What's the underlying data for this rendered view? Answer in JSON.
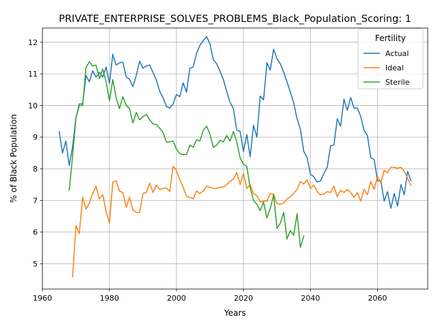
{
  "chart_data": {
    "type": "line",
    "title": "PRIVATE_ENTERPRISE_SOLVES_PROBLEMS_Black_Population_Scoring: 1",
    "xlabel": "Years",
    "ylabel": "% of Black Population",
    "xlim": [
      1960,
      2075
    ],
    "ylim": [
      4.2,
      12.45
    ],
    "xticks": [
      1960,
      1980,
      2000,
      2020,
      2040,
      2060
    ],
    "yticks": [
      5,
      6,
      7,
      8,
      9,
      10,
      11,
      12
    ],
    "grid": true,
    "legend": {
      "title": "Fertility",
      "placement": "top-right"
    },
    "series": [
      {
        "name": "Actual",
        "color": "#1f77b4",
        "points": [
          [
            1965,
            9.18
          ],
          [
            1966,
            8.5
          ],
          [
            1967,
            8.88
          ],
          [
            1968,
            8.1
          ],
          [
            1969,
            8.7
          ],
          [
            1970,
            9.6
          ],
          [
            1971,
            10.05
          ],
          [
            1972,
            10.05
          ],
          [
            1973,
            10.95
          ],
          [
            1974,
            10.75
          ],
          [
            1975,
            11.1
          ],
          [
            1976,
            10.9
          ],
          [
            1977,
            11.05
          ],
          [
            1978,
            10.9
          ],
          [
            1979,
            11.22
          ],
          [
            1980,
            10.7
          ],
          [
            1981,
            11.62
          ],
          [
            1982,
            11.28
          ],
          [
            1983,
            11.35
          ],
          [
            1984,
            11.37
          ],
          [
            1985,
            10.9
          ],
          [
            1986,
            10.83
          ],
          [
            1987,
            10.6
          ],
          [
            1988,
            10.95
          ],
          [
            1989,
            11.4
          ],
          [
            1990,
            11.18
          ],
          [
            1991,
            11.25
          ],
          [
            1992,
            11.28
          ],
          [
            1993,
            11.05
          ],
          [
            1994,
            10.8
          ],
          [
            1995,
            10.45
          ],
          [
            1996,
            10.25
          ],
          [
            1997,
            9.97
          ],
          [
            1998,
            9.92
          ],
          [
            1999,
            10.05
          ],
          [
            2000,
            10.35
          ],
          [
            2001,
            10.28
          ],
          [
            2002,
            10.72
          ],
          [
            2003,
            10.42
          ],
          [
            2004,
            11.18
          ],
          [
            2005,
            11.22
          ],
          [
            2006,
            11.65
          ],
          [
            2007,
            11.9
          ],
          [
            2008,
            12.05
          ],
          [
            2009,
            12.18
          ],
          [
            2010,
            11.95
          ],
          [
            2011,
            11.45
          ],
          [
            2012,
            11.32
          ],
          [
            2013,
            11.08
          ],
          [
            2014,
            10.82
          ],
          [
            2015,
            10.45
          ],
          [
            2016,
            10.1
          ],
          [
            2017,
            9.9
          ],
          [
            2018,
            9.22
          ],
          [
            2019,
            9.18
          ],
          [
            2020,
            8.55
          ],
          [
            2021,
            9.08
          ],
          [
            2022,
            8.38
          ],
          [
            2023,
            9.38
          ],
          [
            2024,
            9.0
          ],
          [
            2025,
            10.3
          ],
          [
            2026,
            10.18
          ],
          [
            2027,
            11.35
          ],
          [
            2028,
            11.12
          ],
          [
            2029,
            11.78
          ],
          [
            2030,
            11.48
          ],
          [
            2031,
            11.32
          ],
          [
            2032,
            11.05
          ],
          [
            2033,
            10.75
          ],
          [
            2034,
            10.42
          ],
          [
            2035,
            10.08
          ],
          [
            2036,
            9.58
          ],
          [
            2037,
            9.25
          ],
          [
            2038,
            8.55
          ],
          [
            2039,
            8.35
          ],
          [
            2040,
            7.83
          ],
          [
            2041,
            7.75
          ],
          [
            2042,
            7.58
          ],
          [
            2043,
            7.62
          ],
          [
            2044,
            7.85
          ],
          [
            2045,
            8.05
          ],
          [
            2046,
            8.73
          ],
          [
            2047,
            8.75
          ],
          [
            2048,
            9.58
          ],
          [
            2049,
            9.35
          ],
          [
            2050,
            10.2
          ],
          [
            2051,
            9.85
          ],
          [
            2052,
            10.25
          ],
          [
            2053,
            9.92
          ],
          [
            2054,
            9.92
          ],
          [
            2055,
            9.65
          ],
          [
            2056,
            9.22
          ],
          [
            2057,
            9.05
          ],
          [
            2058,
            8.35
          ],
          [
            2059,
            8.3
          ],
          [
            2060,
            7.62
          ],
          [
            2061,
            7.62
          ],
          [
            2062,
            6.98
          ],
          [
            2063,
            7.28
          ],
          [
            2064,
            6.75
          ],
          [
            2065,
            7.22
          ],
          [
            2066,
            6.82
          ],
          [
            2067,
            7.5
          ],
          [
            2068,
            7.18
          ],
          [
            2069,
            7.92
          ],
          [
            2070,
            7.62
          ]
        ]
      },
      {
        "name": "Ideal",
        "color": "#ff7f0e",
        "points": [
          [
            1969,
            4.58
          ],
          [
            1970,
            6.2
          ],
          [
            1971,
            5.95
          ],
          [
            1972,
            7.1
          ],
          [
            1973,
            6.72
          ],
          [
            1974,
            6.92
          ],
          [
            1975,
            7.22
          ],
          [
            1976,
            7.45
          ],
          [
            1977,
            7.05
          ],
          [
            1978,
            7.18
          ],
          [
            1979,
            6.65
          ],
          [
            1980,
            6.28
          ],
          [
            1981,
            7.58
          ],
          [
            1982,
            7.62
          ],
          [
            1983,
            7.3
          ],
          [
            1984,
            7.25
          ],
          [
            1985,
            6.78
          ],
          [
            1986,
            7.1
          ],
          [
            1987,
            6.7
          ],
          [
            1988,
            6.62
          ],
          [
            1989,
            6.62
          ],
          [
            1990,
            7.22
          ],
          [
            1991,
            7.25
          ],
          [
            1992,
            7.55
          ],
          [
            1993,
            7.25
          ],
          [
            1994,
            7.48
          ],
          [
            1995,
            7.35
          ],
          [
            1996,
            7.38
          ],
          [
            1997,
            7.4
          ],
          [
            1998,
            7.28
          ],
          [
            1999,
            8.08
          ],
          [
            2000,
            7.95
          ],
          [
            2001,
            7.65
          ],
          [
            2002,
            7.42
          ],
          [
            2003,
            7.12
          ],
          [
            2004,
            7.1
          ],
          [
            2005,
            7.05
          ],
          [
            2006,
            7.3
          ],
          [
            2007,
            7.22
          ],
          [
            2008,
            7.3
          ],
          [
            2009,
            7.45
          ],
          [
            2010,
            7.42
          ],
          [
            2011,
            7.38
          ],
          [
            2012,
            7.38
          ],
          [
            2013,
            7.42
          ],
          [
            2014,
            7.42
          ],
          [
            2015,
            7.5
          ],
          [
            2016,
            7.6
          ],
          [
            2017,
            7.68
          ],
          [
            2018,
            7.88
          ],
          [
            2019,
            7.5
          ],
          [
            2020,
            7.85
          ],
          [
            2021,
            7.38
          ],
          [
            2022,
            7.5
          ],
          [
            2023,
            7.22
          ],
          [
            2024,
            7.15
          ],
          [
            2025,
            6.95
          ],
          [
            2026,
            6.98
          ],
          [
            2027,
            6.98
          ],
          [
            2028,
            7.22
          ],
          [
            2029,
            7.2
          ],
          [
            2030,
            6.9
          ],
          [
            2031,
            6.88
          ],
          [
            2032,
            6.92
          ],
          [
            2033,
            7.05
          ],
          [
            2034,
            7.12
          ],
          [
            2035,
            7.22
          ],
          [
            2036,
            7.35
          ],
          [
            2037,
            7.6
          ],
          [
            2038,
            7.52
          ],
          [
            2039,
            7.65
          ],
          [
            2040,
            7.38
          ],
          [
            2041,
            7.48
          ],
          [
            2042,
            7.28
          ],
          [
            2043,
            7.18
          ],
          [
            2044,
            7.2
          ],
          [
            2045,
            7.28
          ],
          [
            2046,
            7.25
          ],
          [
            2047,
            7.45
          ],
          [
            2048,
            7.12
          ],
          [
            2049,
            7.32
          ],
          [
            2050,
            7.25
          ],
          [
            2051,
            7.35
          ],
          [
            2052,
            7.25
          ],
          [
            2053,
            7.1
          ],
          [
            2054,
            7.25
          ],
          [
            2055,
            6.98
          ],
          [
            2056,
            7.35
          ],
          [
            2057,
            7.18
          ],
          [
            2058,
            7.6
          ],
          [
            2059,
            7.35
          ],
          [
            2060,
            7.75
          ],
          [
            2061,
            7.55
          ],
          [
            2062,
            7.95
          ],
          [
            2063,
            7.88
          ],
          [
            2064,
            8.05
          ],
          [
            2065,
            8.05
          ],
          [
            2066,
            8.02
          ],
          [
            2067,
            8.05
          ],
          [
            2068,
            7.92
          ],
          [
            2069,
            7.7
          ],
          [
            2070,
            7.48
          ]
        ]
      },
      {
        "name": "Sterile",
        "color": "#2ca02c",
        "points": [
          [
            1968,
            7.32
          ],
          [
            1969,
            8.4
          ],
          [
            1970,
            9.6
          ],
          [
            1971,
            10.0
          ],
          [
            1972,
            10.0
          ],
          [
            1973,
            11.2
          ],
          [
            1974,
            11.38
          ],
          [
            1975,
            11.25
          ],
          [
            1976,
            11.28
          ],
          [
            1977,
            10.85
          ],
          [
            1978,
            11.15
          ],
          [
            1979,
            10.75
          ],
          [
            1980,
            10.15
          ],
          [
            1981,
            10.82
          ],
          [
            1982,
            10.25
          ],
          [
            1983,
            9.9
          ],
          [
            1984,
            10.28
          ],
          [
            1985,
            10.0
          ],
          [
            1986,
            9.9
          ],
          [
            1987,
            9.45
          ],
          [
            1988,
            9.78
          ],
          [
            1989,
            9.55
          ],
          [
            1990,
            9.65
          ],
          [
            1991,
            9.72
          ],
          [
            1992,
            9.55
          ],
          [
            1993,
            9.42
          ],
          [
            1994,
            9.4
          ],
          [
            1995,
            9.28
          ],
          [
            1996,
            9.15
          ],
          [
            1997,
            8.85
          ],
          [
            1998,
            8.85
          ],
          [
            1999,
            8.88
          ],
          [
            2000,
            8.62
          ],
          [
            2001,
            8.48
          ],
          [
            2002,
            8.45
          ],
          [
            2003,
            8.45
          ],
          [
            2004,
            8.75
          ],
          [
            2005,
            8.68
          ],
          [
            2006,
            8.92
          ],
          [
            2007,
            8.88
          ],
          [
            2008,
            9.22
          ],
          [
            2009,
            9.35
          ],
          [
            2010,
            9.1
          ],
          [
            2011,
            8.68
          ],
          [
            2012,
            8.75
          ],
          [
            2013,
            8.9
          ],
          [
            2014,
            8.85
          ],
          [
            2015,
            9.05
          ],
          [
            2016,
            8.88
          ],
          [
            2017,
            9.18
          ],
          [
            2018,
            8.85
          ],
          [
            2019,
            8.35
          ],
          [
            2020,
            8.15
          ],
          [
            2021,
            8.08
          ],
          [
            2022,
            7.4
          ],
          [
            2023,
            7.0
          ],
          [
            2024,
            6.88
          ],
          [
            2025,
            6.68
          ],
          [
            2026,
            6.95
          ],
          [
            2027,
            6.45
          ],
          [
            2028,
            6.75
          ],
          [
            2029,
            7.18
          ],
          [
            2030,
            6.12
          ],
          [
            2031,
            6.28
          ],
          [
            2032,
            6.62
          ],
          [
            2033,
            5.78
          ],
          [
            2034,
            6.05
          ],
          [
            2035,
            5.9
          ],
          [
            2036,
            6.58
          ],
          [
            2037,
            5.52
          ],
          [
            2038,
            5.88
          ]
        ]
      }
    ]
  }
}
